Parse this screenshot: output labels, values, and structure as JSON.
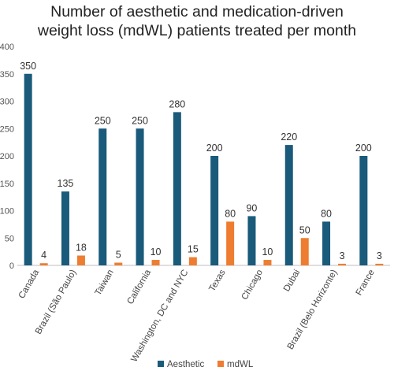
{
  "chart_data": {
    "type": "bar",
    "title_lines": [
      "Number of aesthetic and medication-driven",
      "weight loss (mdWL) patients treated per month"
    ],
    "categories": [
      "Canada",
      "Brazil (São Paulo)",
      "Taiwan",
      "California",
      "Washington, DC and NYC",
      "Texas",
      "Chicago",
      "Dubai",
      "Brazil (Belo Horizonte)",
      "France"
    ],
    "series": [
      {
        "name": "Aesthetic",
        "color": "#1a5a7a",
        "values": [
          350,
          135,
          250,
          250,
          280,
          200,
          90,
          220,
          80,
          200
        ]
      },
      {
        "name": "mdWL",
        "color": "#ee7d31",
        "values": [
          4,
          18,
          5,
          10,
          15,
          80,
          10,
          50,
          3,
          3
        ]
      }
    ],
    "ylim": [
      0,
      400
    ],
    "yticks": [
      0,
      50,
      100,
      150,
      200,
      250,
      300,
      350,
      400
    ],
    "grid": false,
    "legend_position": "bottom"
  }
}
